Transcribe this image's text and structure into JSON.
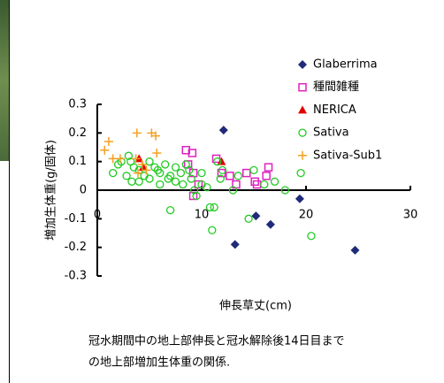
{
  "chart_data": {
    "type": "scatter",
    "x_label": "伸長草丈(cm)",
    "y_label": "増加生体重(g/固体)",
    "xlim": [
      0,
      30
    ],
    "xticks": [
      0,
      10,
      20,
      30
    ],
    "ylim": [
      -0.3,
      0.3
    ],
    "yticks": [
      0.3,
      0.2,
      0.1,
      0,
      -0.1,
      -0.2,
      -0.3
    ],
    "legend": "upper right",
    "series": [
      {
        "name": "Glaberrima",
        "color": "#1f2a78",
        "marker": "diamond",
        "x": [
          12.1,
          13.2,
          15.2,
          16.6,
          19.4,
          24.7
        ],
        "y": [
          0.21,
          -0.19,
          -0.09,
          -0.12,
          -0.03,
          -0.21
        ]
      },
      {
        "name": "種間雑種",
        "color": "#e020c0",
        "marker": "square",
        "x": [
          8.5,
          9.1,
          8.7,
          9.2,
          9.7,
          9.2,
          11.4,
          11.9,
          12.7,
          13.3,
          15.1,
          14.3,
          16.4,
          16.2,
          15.3
        ],
        "y": [
          0.14,
          0.13,
          0.09,
          0.06,
          0.02,
          -0.02,
          0.11,
          0.06,
          0.05,
          0.02,
          0.03,
          0.06,
          0.08,
          0.05,
          0.02
        ]
      },
      {
        "name": "NERICA",
        "color": "#e00000",
        "marker": "triangle",
        "x": [
          4.0,
          11.9,
          4.4
        ],
        "y": [
          0.11,
          0.1,
          0.08
        ]
      },
      {
        "name": "Sativa",
        "color": "#22cc22",
        "marker": "circle",
        "x": [
          1.5,
          2,
          2.3,
          2.8,
          3,
          3.2,
          3.5,
          3.3,
          4,
          4.5,
          5,
          5,
          5.5,
          6,
          6,
          6.5,
          7,
          7,
          7.5,
          7.5,
          8,
          8.2,
          8.5,
          9,
          9.3,
          9.5,
          10,
          10,
          10.5,
          10.8,
          11,
          11.2,
          11.5,
          11.8,
          12,
          13,
          13.5,
          14.5,
          15,
          16,
          17,
          18,
          19.5,
          20.5,
          5.8,
          6.8,
          4,
          8.8
        ],
        "y": [
          0.06,
          0.09,
          0.1,
          0.05,
          0.12,
          0.1,
          0.08,
          0.03,
          0.07,
          0.05,
          0.1,
          0.04,
          0.08,
          0.06,
          0.02,
          0.09,
          0.05,
          -0.07,
          0.08,
          0.03,
          0.06,
          0.02,
          0.09,
          0.04,
          0.0,
          -0.02,
          0.06,
          0.02,
          0.01,
          -0.06,
          -0.14,
          -0.06,
          0.1,
          0.04,
          0.07,
          0.0,
          0.05,
          -0.1,
          0.07,
          0.02,
          0.03,
          0.0,
          0.06,
          -0.16,
          0.07,
          0.04,
          0.03,
          0.07
        ]
      },
      {
        "name": "Sativa-Sub1",
        "color": "#f5a020",
        "marker": "plus",
        "x": [
          0.7,
          1.1,
          3.7,
          3.8,
          5.2,
          5.6,
          5.7,
          3.9,
          4.3,
          4.7,
          2.2,
          1.5
        ],
        "y": [
          0.14,
          0.17,
          0.11,
          0.2,
          0.2,
          0.19,
          0.13,
          0.06,
          0.09,
          0.07,
          0.11,
          0.11
        ]
      }
    ]
  },
  "caption": [
    "冠水期間中の地上部伸長と冠水解除後14日目まで",
    "の地上部増加生体重の関係."
  ]
}
